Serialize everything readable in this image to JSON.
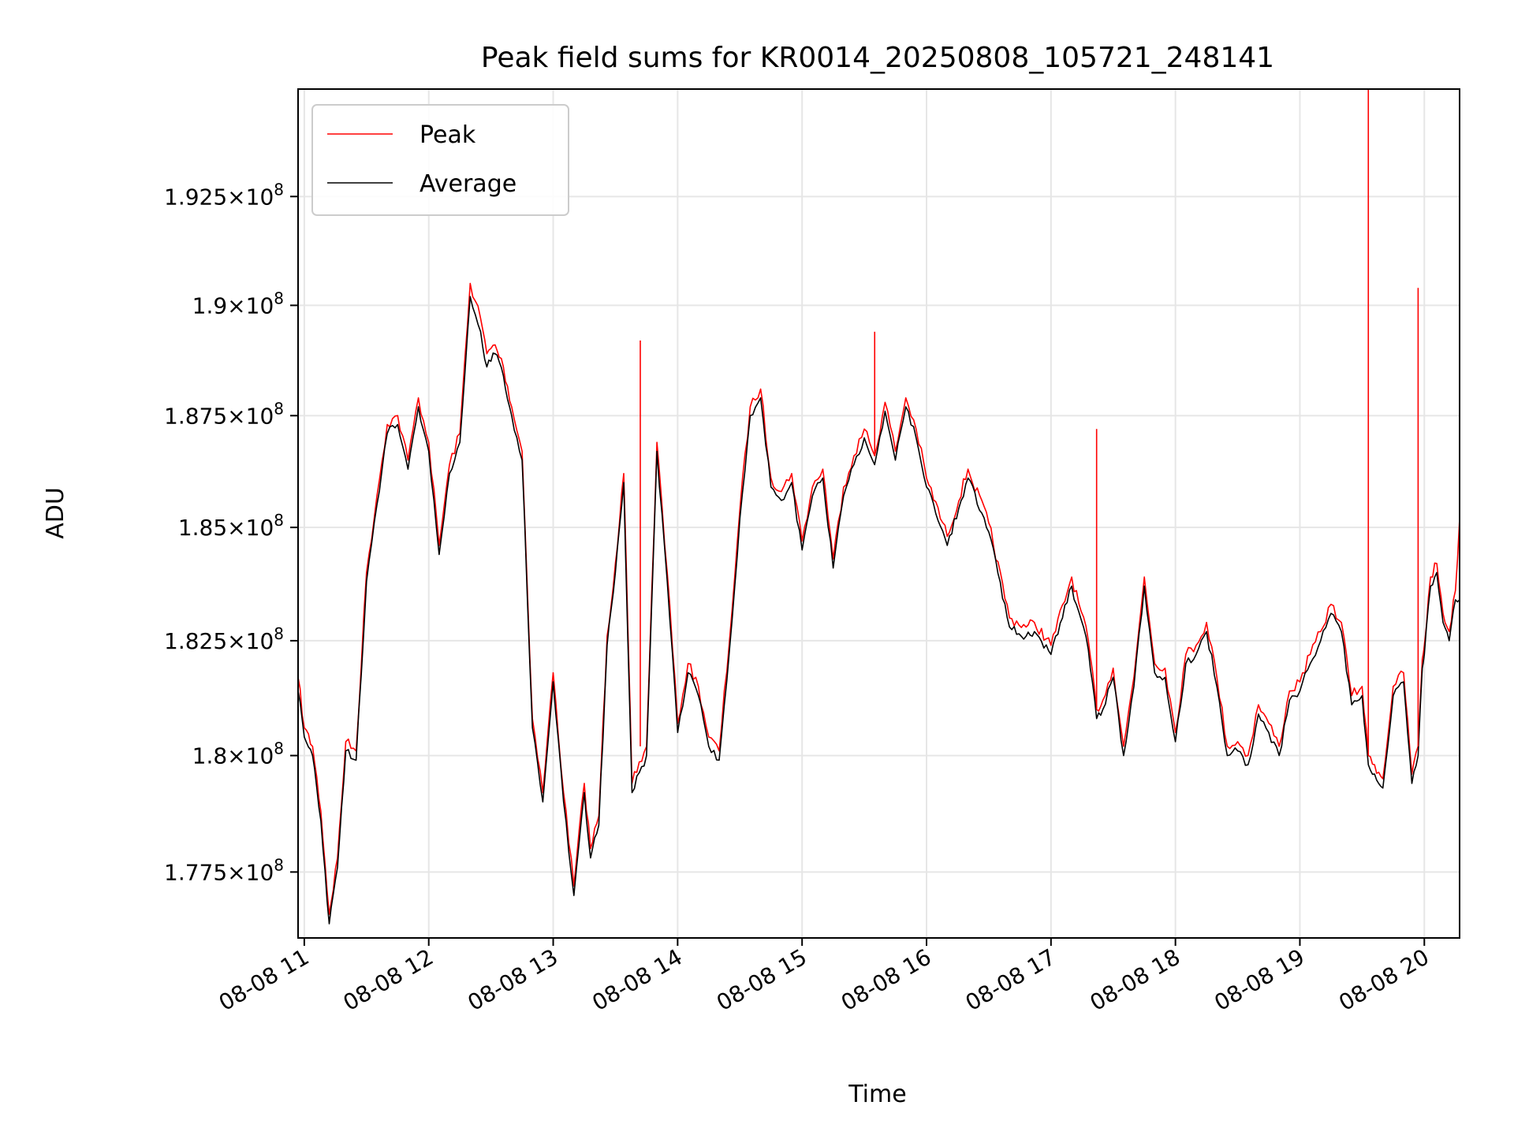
{
  "chart_data": {
    "type": "line",
    "title": "Peak field sums for KR0014_20250808_105721_248141",
    "xlabel": "Time",
    "ylabel": "ADU",
    "x_tick_labels": [
      "08-08 11",
      "08-08 12",
      "08-08 13",
      "08-08 14",
      "08-08 15",
      "08-08 16",
      "08-08 17",
      "08-08 18",
      "08-08 19",
      "08-08 20"
    ],
    "y_ticks": [
      {
        "value": 177500000,
        "mantissa": "1.775"
      },
      {
        "value": 180000000,
        "mantissa": "1.8"
      },
      {
        "value": 182500000,
        "mantissa": "1.825"
      },
      {
        "value": 185000000,
        "mantissa": "1.85"
      },
      {
        "value": 187500000,
        "mantissa": "1.875"
      },
      {
        "value": 190000000,
        "mantissa": "1.9"
      },
      {
        "value": 192500000,
        "mantissa": "1.925"
      }
    ],
    "y_tick_suffix": "×10",
    "y_tick_exponent": "8",
    "xlim": [
      "2025-08-08 10:57",
      "2025-08-08 20:17"
    ],
    "ylim": [
      176100000,
      195000000
    ],
    "y_scale": "log",
    "grid": true,
    "legend_position": "upper left",
    "series": [
      {
        "name": "Peak",
        "color": "#ff0000",
        "x": [
          "2025-08-08 10:57",
          "2025-08-08 11:00",
          "2025-08-08 11:04",
          "2025-08-08 11:08",
          "2025-08-08 11:12",
          "2025-08-08 11:16",
          "2025-08-08 11:20",
          "2025-08-08 11:25",
          "2025-08-08 11:30",
          "2025-08-08 11:35",
          "2025-08-08 11:40",
          "2025-08-08 11:45",
          "2025-08-08 11:50",
          "2025-08-08 11:55",
          "2025-08-08 12:00",
          "2025-08-08 12:05",
          "2025-08-08 12:10",
          "2025-08-08 12:15",
          "2025-08-08 12:20",
          "2025-08-08 12:25",
          "2025-08-08 12:28",
          "2025-08-08 12:32",
          "2025-08-08 12:36",
          "2025-08-08 12:40",
          "2025-08-08 12:45",
          "2025-08-08 12:50",
          "2025-08-08 12:55",
          "2025-08-08 13:00",
          "2025-08-08 13:05",
          "2025-08-08 13:10",
          "2025-08-08 13:15",
          "2025-08-08 13:18",
          "2025-08-08 13:22",
          "2025-08-08 13:26",
          "2025-08-08 13:30",
          "2025-08-08 13:34",
          "2025-08-08 13:38",
          "2025-08-08 13:45",
          "2025-08-08 13:50",
          "2025-08-08 13:55",
          "2025-08-08 14:00",
          "2025-08-08 14:05",
          "2025-08-08 14:10",
          "2025-08-08 14:15",
          "2025-08-08 14:20",
          "2025-08-08 14:25",
          "2025-08-08 14:30",
          "2025-08-08 14:35",
          "2025-08-08 14:40",
          "2025-08-08 14:45",
          "2025-08-08 14:50",
          "2025-08-08 14:55",
          "2025-08-08 15:00",
          "2025-08-08 15:05",
          "2025-08-08 15:10",
          "2025-08-08 15:15",
          "2025-08-08 15:20",
          "2025-08-08 15:25",
          "2025-08-08 15:30",
          "2025-08-08 15:35",
          "2025-08-08 15:40",
          "2025-08-08 15:45",
          "2025-08-08 15:50",
          "2025-08-08 15:55",
          "2025-08-08 16:00",
          "2025-08-08 16:10",
          "2025-08-08 16:20",
          "2025-08-08 16:30",
          "2025-08-08 16:40",
          "2025-08-08 16:48",
          "2025-08-08 16:52",
          "2025-08-08 17:00",
          "2025-08-08 17:10",
          "2025-08-08 17:18",
          "2025-08-08 17:22",
          "2025-08-08 17:25",
          "2025-08-08 17:30",
          "2025-08-08 17:35",
          "2025-08-08 17:40",
          "2025-08-08 17:45",
          "2025-08-08 17:50",
          "2025-08-08 17:55",
          "2025-08-08 18:00",
          "2025-08-08 18:05",
          "2025-08-08 18:10",
          "2025-08-08 18:15",
          "2025-08-08 18:20",
          "2025-08-08 18:25",
          "2025-08-08 18:30",
          "2025-08-08 18:35",
          "2025-08-08 18:40",
          "2025-08-08 18:45",
          "2025-08-08 18:50",
          "2025-08-08 18:55",
          "2025-08-08 19:00",
          "2025-08-08 19:05",
          "2025-08-08 19:10",
          "2025-08-08 19:15",
          "2025-08-08 19:20",
          "2025-08-08 19:25",
          "2025-08-08 19:30",
          "2025-08-08 19:33",
          "2025-08-08 19:36",
          "2025-08-08 19:40",
          "2025-08-08 19:45",
          "2025-08-08 19:50",
          "2025-08-08 19:54",
          "2025-08-08 19:57",
          "2025-08-08 19:59",
          "2025-08-08 20:00",
          "2025-08-08 20:03",
          "2025-08-08 20:06",
          "2025-08-08 20:09",
          "2025-08-08 20:12",
          "2025-08-08 20:15",
          "2025-08-08 20:17"
        ],
        "values": [
          181700000,
          180600000,
          180200000,
          178800000,
          176600000,
          177800000,
          180300000,
          180100000,
          184000000,
          185700000,
          187300000,
          187500000,
          186500000,
          187900000,
          186900000,
          184600000,
          186400000,
          187100000,
          190500000,
          189700000,
          188900000,
          189100000,
          188600000,
          187700000,
          186700000,
          180800000,
          179200000,
          181800000,
          179200000,
          177200000,
          179400000,
          178000000,
          178700000,
          182600000,
          184200000,
          186200000,
          179400000,
          180200000,
          186900000,
          184000000,
          180700000,
          182000000,
          181500000,
          180400000,
          180100000,
          182500000,
          185400000,
          187700000,
          188100000,
          186100000,
          185800000,
          186200000,
          184700000,
          185900000,
          186300000,
          184300000,
          185900000,
          186600000,
          187200000,
          186600000,
          187800000,
          186700000,
          187900000,
          187200000,
          186100000,
          184800000,
          186300000,
          185100000,
          183000000,
          182800000,
          182900000,
          182400000,
          183900000,
          182500000,
          181000000,
          181200000,
          181900000,
          180200000,
          181700000,
          183900000,
          182000000,
          181900000,
          180500000,
          182200000,
          182400000,
          182900000,
          181700000,
          180200000,
          180300000,
          180000000,
          181100000,
          180700000,
          180200000,
          181400000,
          181600000,
          182200000,
          182700000,
          183300000,
          182900000,
          181300000,
          181500000,
          180000000,
          179800000,
          179500000,
          181500000,
          181800000,
          179600000,
          180200000,
          182100000,
          182400000,
          183900000,
          184200000,
          183100000,
          182700000,
          183600000,
          185200000
        ]
      },
      {
        "name": "Average",
        "color": "#000000",
        "x": [
          "2025-08-08 10:57",
          "2025-08-08 11:00",
          "2025-08-08 11:04",
          "2025-08-08 11:08",
          "2025-08-08 11:12",
          "2025-08-08 11:16",
          "2025-08-08 11:20",
          "2025-08-08 11:25",
          "2025-08-08 11:30",
          "2025-08-08 11:35",
          "2025-08-08 11:40",
          "2025-08-08 11:45",
          "2025-08-08 11:50",
          "2025-08-08 11:55",
          "2025-08-08 12:00",
          "2025-08-08 12:05",
          "2025-08-08 12:10",
          "2025-08-08 12:15",
          "2025-08-08 12:20",
          "2025-08-08 12:25",
          "2025-08-08 12:28",
          "2025-08-08 12:32",
          "2025-08-08 12:36",
          "2025-08-08 12:40",
          "2025-08-08 12:45",
          "2025-08-08 12:50",
          "2025-08-08 12:55",
          "2025-08-08 13:00",
          "2025-08-08 13:05",
          "2025-08-08 13:10",
          "2025-08-08 13:15",
          "2025-08-08 13:18",
          "2025-08-08 13:22",
          "2025-08-08 13:26",
          "2025-08-08 13:30",
          "2025-08-08 13:34",
          "2025-08-08 13:38",
          "2025-08-08 13:45",
          "2025-08-08 13:50",
          "2025-08-08 13:55",
          "2025-08-08 14:00",
          "2025-08-08 14:05",
          "2025-08-08 14:10",
          "2025-08-08 14:15",
          "2025-08-08 14:20",
          "2025-08-08 14:25",
          "2025-08-08 14:30",
          "2025-08-08 14:35",
          "2025-08-08 14:40",
          "2025-08-08 14:45",
          "2025-08-08 14:50",
          "2025-08-08 14:55",
          "2025-08-08 15:00",
          "2025-08-08 15:05",
          "2025-08-08 15:10",
          "2025-08-08 15:15",
          "2025-08-08 15:20",
          "2025-08-08 15:25",
          "2025-08-08 15:30",
          "2025-08-08 15:35",
          "2025-08-08 15:40",
          "2025-08-08 15:45",
          "2025-08-08 15:50",
          "2025-08-08 15:55",
          "2025-08-08 16:00",
          "2025-08-08 16:10",
          "2025-08-08 16:20",
          "2025-08-08 16:30",
          "2025-08-08 16:40",
          "2025-08-08 16:48",
          "2025-08-08 16:52",
          "2025-08-08 17:00",
          "2025-08-08 17:10",
          "2025-08-08 17:18",
          "2025-08-08 17:22",
          "2025-08-08 17:25",
          "2025-08-08 17:30",
          "2025-08-08 17:35",
          "2025-08-08 17:40",
          "2025-08-08 17:45",
          "2025-08-08 17:50",
          "2025-08-08 17:55",
          "2025-08-08 18:00",
          "2025-08-08 18:05",
          "2025-08-08 18:10",
          "2025-08-08 18:15",
          "2025-08-08 18:20",
          "2025-08-08 18:25",
          "2025-08-08 18:30",
          "2025-08-08 18:35",
          "2025-08-08 18:40",
          "2025-08-08 18:45",
          "2025-08-08 18:50",
          "2025-08-08 18:55",
          "2025-08-08 19:00",
          "2025-08-08 19:05",
          "2025-08-08 19:10",
          "2025-08-08 19:15",
          "2025-08-08 19:20",
          "2025-08-08 19:25",
          "2025-08-08 19:30",
          "2025-08-08 19:33",
          "2025-08-08 19:36",
          "2025-08-08 19:40",
          "2025-08-08 19:45",
          "2025-08-08 19:50",
          "2025-08-08 19:54",
          "2025-08-08 19:57",
          "2025-08-08 19:59",
          "2025-08-08 20:00",
          "2025-08-08 20:03",
          "2025-08-08 20:06",
          "2025-08-08 20:09",
          "2025-08-08 20:12",
          "2025-08-08 20:15",
          "2025-08-08 20:17"
        ],
        "values": [
          181400000,
          180400000,
          180000000,
          178600000,
          176400000,
          177600000,
          180100000,
          179900000,
          183800000,
          185500000,
          187100000,
          187300000,
          186300000,
          187700000,
          186700000,
          184400000,
          186200000,
          186900000,
          190200000,
          189400000,
          188600000,
          188900000,
          188400000,
          187500000,
          186500000,
          180600000,
          179000000,
          181600000,
          179000000,
          177000000,
          179200000,
          177800000,
          178500000,
          182400000,
          184000000,
          186000000,
          179200000,
          180000000,
          186700000,
          183800000,
          180500000,
          181800000,
          181300000,
          180200000,
          179900000,
          182300000,
          185200000,
          187500000,
          187900000,
          185900000,
          185600000,
          186000000,
          184500000,
          185700000,
          186100000,
          184100000,
          185700000,
          186400000,
          187000000,
          186400000,
          187600000,
          186500000,
          187700000,
          187000000,
          185900000,
          184600000,
          186100000,
          184900000,
          182800000,
          182600000,
          182700000,
          182200000,
          183700000,
          182300000,
          180800000,
          181000000,
          181700000,
          180000000,
          181500000,
          183700000,
          181800000,
          181700000,
          180300000,
          182000000,
          182200000,
          182700000,
          181500000,
          180000000,
          180100000,
          179800000,
          180900000,
          180500000,
          180000000,
          181200000,
          181400000,
          182000000,
          182500000,
          183100000,
          182700000,
          181100000,
          181300000,
          179800000,
          179600000,
          179300000,
          181300000,
          181600000,
          179400000,
          180000000,
          181900000,
          182200000,
          183700000,
          184000000,
          182900000,
          182500000,
          183400000,
          183400000
        ]
      }
    ],
    "spikes": [
      {
        "series": "Peak",
        "x": "2025-08-08 19:33",
        "value": 195000000
      },
      {
        "series": "Peak",
        "x": "2025-08-08 19:57",
        "value": 190400000
      },
      {
        "series": "Peak",
        "x": "2025-08-08 17:22",
        "value": 187200000
      },
      {
        "series": "Peak",
        "x": "2025-08-08 15:35",
        "value": 189400000
      },
      {
        "series": "Peak",
        "x": "2025-08-08 13:42",
        "value": 189200000
      }
    ]
  }
}
